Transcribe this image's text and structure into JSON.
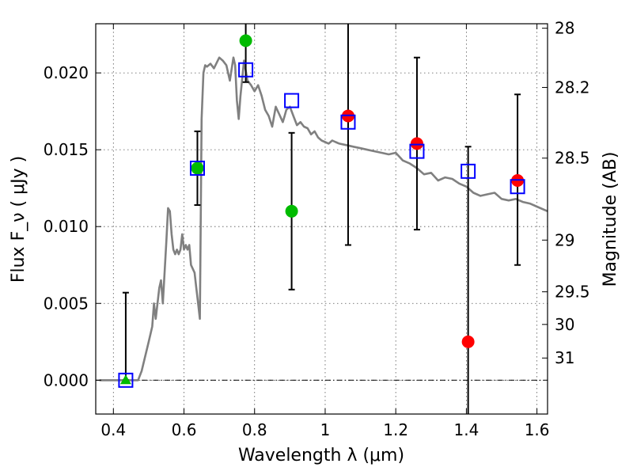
{
  "chart_data": {
    "type": "scatter",
    "xlabel": "Wavelength  λ (μm)",
    "ylabel": "Flux  F_ν  ( μJy )",
    "y2label": "Magnitude (AB)",
    "xlim": [
      0.35,
      1.63
    ],
    "ylim": [
      -0.0022,
      0.0232
    ],
    "x_ticks": [
      "0.4",
      "0.6",
      "0.8",
      "1",
      "1.2",
      "1.4",
      "1.6"
    ],
    "x_tick_values": [
      0.4,
      0.6,
      0.8,
      1.0,
      1.2,
      1.4,
      1.6
    ],
    "y_ticks": [
      "0.000",
      "0.005",
      "0.010",
      "0.015",
      "0.020"
    ],
    "y_tick_values": [
      0.0,
      0.005,
      0.01,
      0.015,
      0.02
    ],
    "mag_ticks": [
      "28",
      "28.2",
      "28.5",
      "29",
      "29.5",
      "30",
      "31"
    ],
    "grid": true,
    "zero_line": true,
    "model_spectrum": {
      "color": "#808080",
      "x": [
        0.36,
        0.47,
        0.48,
        0.5,
        0.51,
        0.515,
        0.52,
        0.53,
        0.535,
        0.54,
        0.55,
        0.555,
        0.56,
        0.565,
        0.57,
        0.575,
        0.58,
        0.585,
        0.59,
        0.595,
        0.6,
        0.605,
        0.61,
        0.615,
        0.62,
        0.63,
        0.635,
        0.64,
        0.645,
        0.65,
        0.655,
        0.66,
        0.665,
        0.675,
        0.685,
        0.7,
        0.71,
        0.72,
        0.73,
        0.74,
        0.745,
        0.75,
        0.755,
        0.76,
        0.77,
        0.78,
        0.79,
        0.8,
        0.81,
        0.82,
        0.83,
        0.84,
        0.85,
        0.86,
        0.87,
        0.88,
        0.885,
        0.89,
        0.9,
        0.91,
        0.92,
        0.93,
        0.94,
        0.95,
        0.96,
        0.97,
        0.98,
        0.99,
        1.0,
        1.01,
        1.02,
        1.03,
        1.04,
        1.06,
        1.08,
        1.1,
        1.12,
        1.14,
        1.16,
        1.18,
        1.2,
        1.22,
        1.24,
        1.26,
        1.28,
        1.3,
        1.32,
        1.34,
        1.36,
        1.38,
        1.4,
        1.42,
        1.44,
        1.46,
        1.48,
        1.5,
        1.52,
        1.54,
        1.56,
        1.58,
        1.6,
        1.63
      ],
      "y": [
        0.0,
        0.0,
        0.0006,
        0.0025,
        0.0035,
        0.005,
        0.004,
        0.006,
        0.0065,
        0.005,
        0.009,
        0.0112,
        0.011,
        0.0095,
        0.0085,
        0.0082,
        0.0085,
        0.0082,
        0.0085,
        0.0095,
        0.0085,
        0.0088,
        0.0085,
        0.0088,
        0.0075,
        0.007,
        0.006,
        0.005,
        0.004,
        0.017,
        0.02,
        0.0205,
        0.0204,
        0.0206,
        0.0203,
        0.021,
        0.0208,
        0.0205,
        0.0195,
        0.021,
        0.0205,
        0.0182,
        0.017,
        0.0185,
        0.0208,
        0.0195,
        0.0192,
        0.0188,
        0.0192,
        0.0185,
        0.0176,
        0.0172,
        0.0165,
        0.0178,
        0.0173,
        0.0168,
        0.0172,
        0.0176,
        0.0178,
        0.0172,
        0.0166,
        0.0168,
        0.0165,
        0.0164,
        0.016,
        0.0162,
        0.0158,
        0.0156,
        0.0155,
        0.0154,
        0.0156,
        0.0155,
        0.0154,
        0.0153,
        0.0152,
        0.0151,
        0.015,
        0.0149,
        0.0148,
        0.0147,
        0.0148,
        0.0143,
        0.0141,
        0.0138,
        0.0134,
        0.0135,
        0.013,
        0.0132,
        0.0131,
        0.0128,
        0.0126,
        0.0122,
        0.012,
        0.0121,
        0.0122,
        0.0118,
        0.0117,
        0.0118,
        0.0116,
        0.0115,
        0.0113,
        0.011
      ]
    },
    "model_bands": {
      "color": "#0000ff",
      "x": [
        0.435,
        0.638,
        0.775,
        0.905,
        1.065,
        1.26,
        1.405,
        1.545
      ],
      "y": [
        0.0,
        0.0138,
        0.0202,
        0.0182,
        0.0168,
        0.0149,
        0.0136,
        0.0126
      ]
    },
    "observed_green": {
      "color": "#00bb00",
      "x": [
        0.638,
        0.775,
        0.905
      ],
      "y": [
        0.0138,
        0.0221,
        0.011
      ],
      "yerr_low": [
        0.0024,
        0.0027,
        0.0051
      ],
      "yerr_high": [
        0.0024,
        0.0027,
        0.0051
      ]
    },
    "observed_green_triangle": {
      "color": "#00bb00",
      "x": [
        0.435
      ],
      "y": [
        0.0
      ],
      "yerr_low": [
        0.0
      ],
      "yerr_high": [
        0.0057
      ]
    },
    "observed_red": {
      "color": "#ff0000",
      "x": [
        1.065,
        1.26,
        1.405,
        1.545
      ],
      "y": [
        0.0172,
        0.0154,
        0.0025,
        0.013
      ],
      "yerr_low": [
        0.0084,
        0.0056,
        0.0055,
        0.0055
      ],
      "yerr_high": [
        0.0084,
        0.0056,
        0.0127,
        0.0056
      ]
    }
  }
}
